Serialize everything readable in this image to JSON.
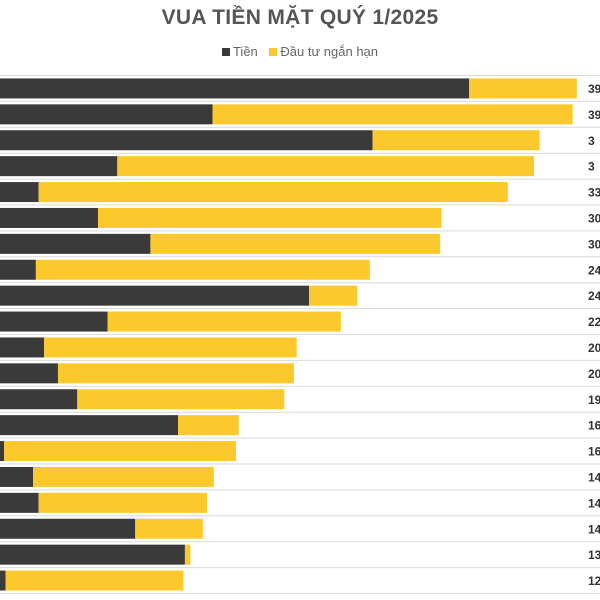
{
  "chart_data": {
    "type": "bar",
    "orientation": "horizontal",
    "stacked": true,
    "title": "VUA TIỀN MẶT QUÝ 1/2025",
    "colors": {
      "tien": "#3a3a3a",
      "dautu": "#fcc92c"
    },
    "series": [
      {
        "name": "Tiền",
        "values": [
          34.0,
          15.4,
          27.0,
          8.5,
          2.8,
          7.1,
          10.9,
          2.6,
          22.4,
          7.8,
          3.2,
          4.2,
          5.6,
          12.9,
          0.3,
          2.4,
          2.8,
          9.8,
          13.4,
          0.4
        ]
      },
      {
        "name": "Đầu tư ngắn hạn",
        "values": [
          7.8,
          26.1,
          12.1,
          30.2,
          34.0,
          24.9,
          21.0,
          24.2,
          3.5,
          16.9,
          18.3,
          17.1,
          15.0,
          4.4,
          16.8,
          13.1,
          12.2,
          4.9,
          0.4,
          12.9
        ]
      }
    ],
    "labels": [
      "39",
      "39",
      "3",
      "3",
      "33",
      "30",
      "30",
      "24",
      "24",
      "22",
      "20",
      "20",
      "19",
      "16",
      "16",
      "14",
      "14",
      "14",
      "13",
      "12"
    ],
    "grid": "horizontal",
    "legend_position": "top"
  }
}
